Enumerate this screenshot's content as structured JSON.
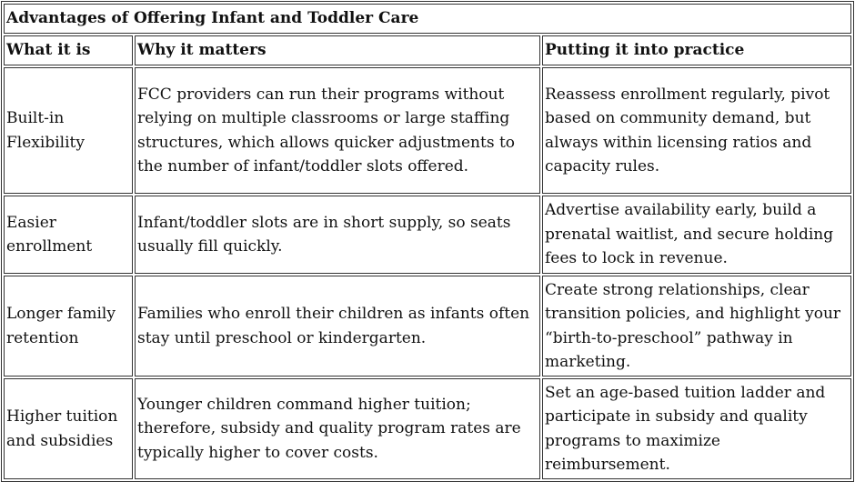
{
  "table": {
    "title": "Advantages of Offering Infant and Toddler Care",
    "header": [
      "What it is",
      "Why it matters",
      "Putting it into practice"
    ],
    "rows": [
      [
        "Built-in Flexibility",
        "FCC providers can run their programs without relying on multiple classrooms or large staffing structures, which allows quicker adjustments to the number of infant/toddler slots offered.",
        "Reassess enrollment regularly, pivot based on community demand, but always within licensing ratios and capacity rules."
      ],
      [
        "Easier enrollment",
        "Infant/toddler slots are in short supply, so seats usually fill quickly.",
        "Advertise availability early, build a prenatal waitlist, and secure holding fees to lock in revenue."
      ],
      [
        "Longer family retention",
        "Families who enroll their children as infants often stay until preschool or kindergarten.",
        "Create strong relationships, clear transition policies, and highlight your “birth-to-preschool” pathway in marketing."
      ],
      [
        "Higher tuition and subsidies",
        "Younger children command higher tuition; therefore, subsidy and quality program rates are typically higher to cover costs.",
        "Set an age-based tuition ladder and participate in subsidy and quality programs to maximize reimbursement."
      ]
    ]
  }
}
